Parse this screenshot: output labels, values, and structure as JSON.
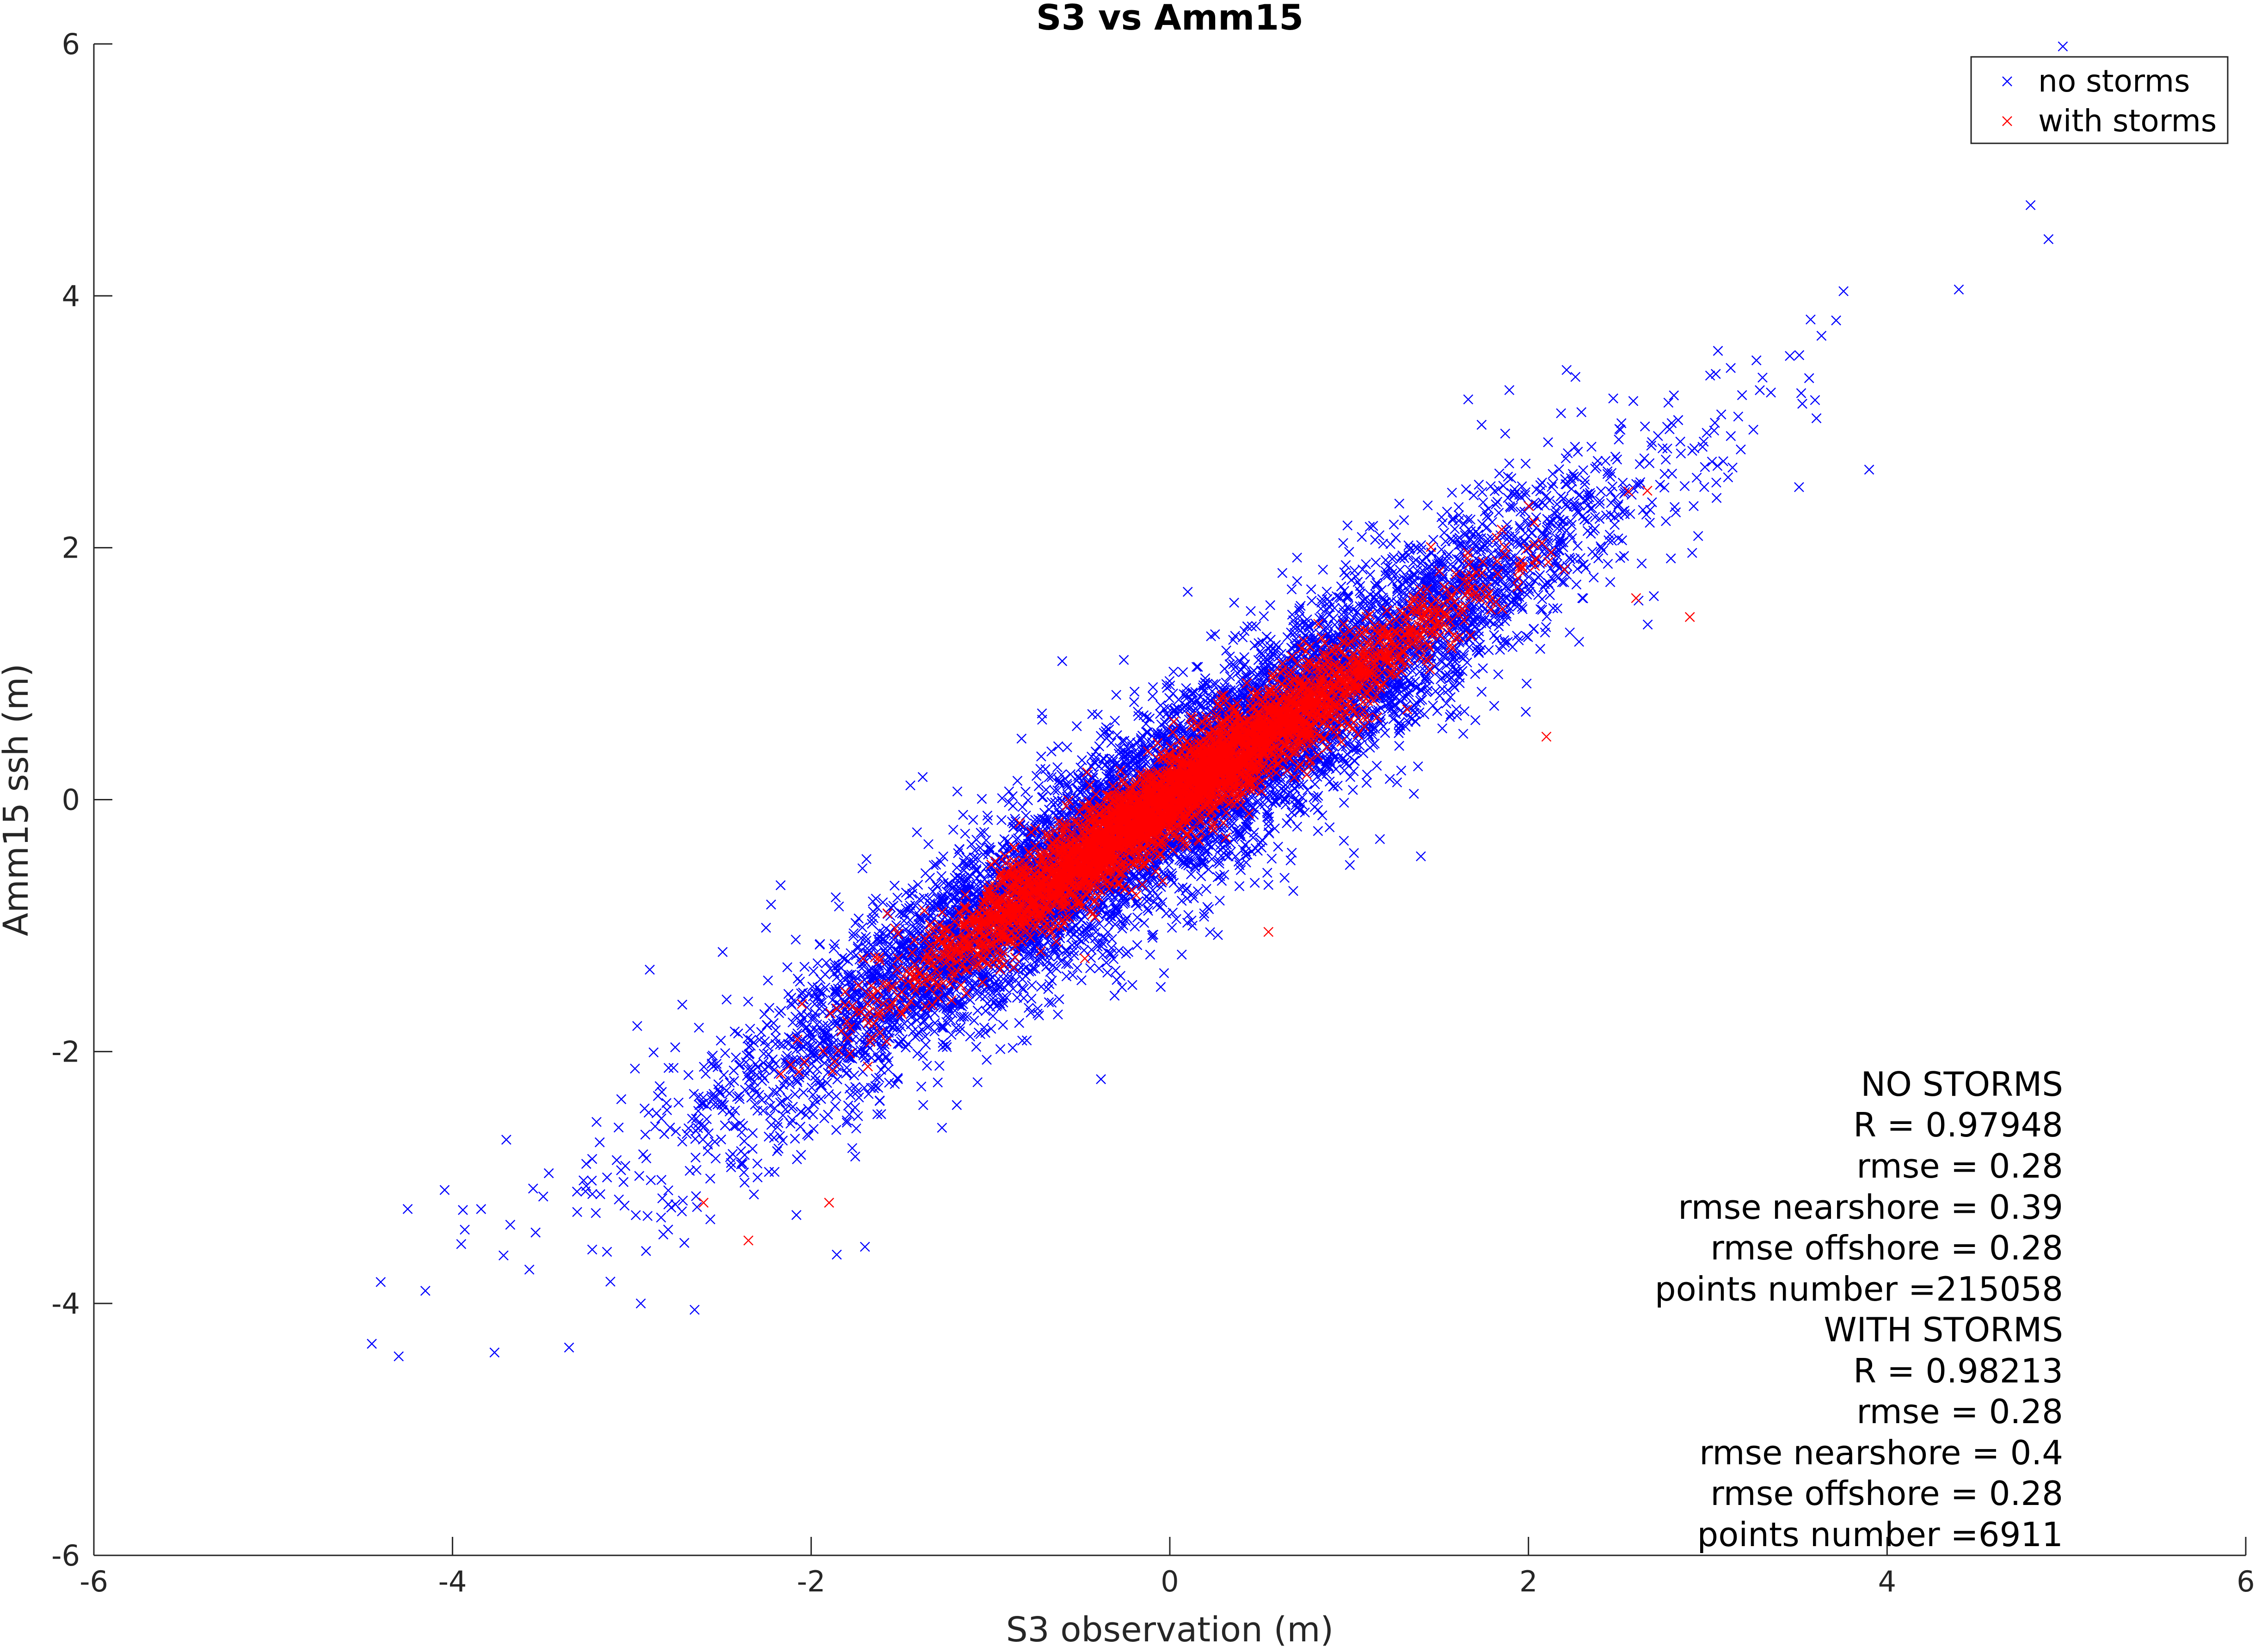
{
  "chart_data": {
    "type": "scatter",
    "title": "S3 vs Amm15",
    "xlabel": "S3 observation (m)",
    "ylabel": "Amm15 ssh (m)",
    "xlim": [
      -6,
      6
    ],
    "ylim": [
      -6,
      6
    ],
    "xticks": [
      -6,
      -4,
      -2,
      0,
      2,
      4,
      6
    ],
    "yticks": [
      -6,
      -4,
      -2,
      0,
      2,
      4,
      6
    ],
    "xtick_labels": [
      "-6",
      "-4",
      "-2",
      "0",
      "2",
      "4",
      "6"
    ],
    "ytick_labels": [
      "-6",
      "-4",
      "-2",
      "0",
      "2",
      "4",
      "6"
    ],
    "grid": false,
    "legend_position": "top-right",
    "marker": "x",
    "series": [
      {
        "name": "no storms",
        "color": "#0000ff",
        "x_range": [
          -4.5,
          4.9
        ],
        "approx_slope": 0.97,
        "approx_spread": 0.28,
        "outliers": [
          [
            4.98,
            5.98
          ],
          [
            4.8,
            4.72
          ],
          [
            3.9,
            2.62
          ],
          [
            -4.45,
            -4.32
          ],
          [
            -4.3,
            -4.42
          ],
          [
            -3.35,
            -4.35
          ],
          [
            -2.65,
            -4.05
          ],
          [
            -2.95,
            -4.0
          ],
          [
            -4.25,
            -3.25
          ],
          [
            -3.7,
            -2.7
          ],
          [
            -2.9,
            -1.35
          ],
          [
            -1.7,
            -3.55
          ],
          [
            0.1,
            1.65
          ],
          [
            -0.6,
            1.1
          ],
          [
            1.4,
            -0.45
          ],
          [
            4.9,
            4.45
          ],
          [
            4.4,
            4.05
          ]
        ]
      },
      {
        "name": "with storms",
        "color": "#ff0000",
        "x_range": [
          -2.6,
          2.7
        ],
        "approx_slope": 0.97,
        "approx_spread": 0.14,
        "outliers": [
          [
            -2.35,
            -3.5
          ],
          [
            2.6,
            1.6
          ],
          [
            2.9,
            1.45
          ],
          [
            2.1,
            0.5
          ],
          [
            0.55,
            -1.05
          ],
          [
            -2.6,
            -3.2
          ],
          [
            -1.9,
            -3.2
          ]
        ]
      }
    ],
    "annotations": [
      "NO STORMS",
      "R = 0.97948",
      "rmse = 0.28",
      "rmse nearshore = 0.39",
      "rmse offshore = 0.28",
      "points number =215058",
      "WITH STORMS",
      "R = 0.98213",
      "rmse = 0.28",
      "rmse nearshore = 0.4",
      "rmse offshore = 0.28",
      "points number =6911"
    ]
  }
}
